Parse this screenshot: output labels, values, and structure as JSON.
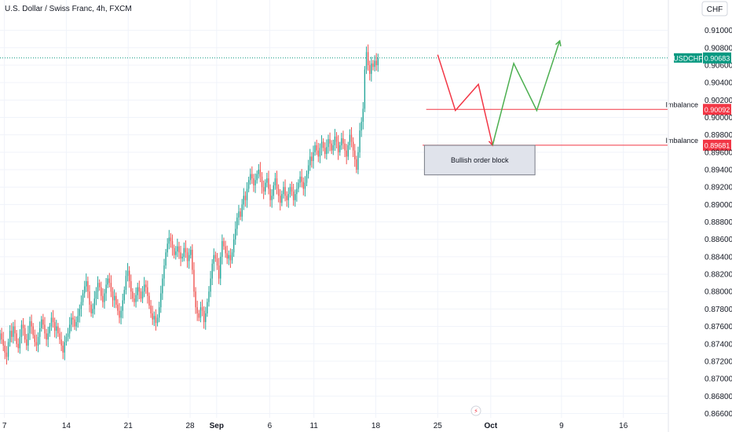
{
  "header": {
    "title": "U.S. Dollar / Swiss Franc, 4h, FXCM",
    "currency_button": "CHF"
  },
  "chart_data": {
    "type": "candlestick",
    "symbol_label": "USDCHF",
    "last_price": "0.90683",
    "ylim": [
      0.8655,
      0.9115
    ],
    "y_ticks": [
      "0.91000",
      "0.90800",
      "0.90600",
      "0.90400",
      "0.90200",
      "0.90000",
      "0.89800",
      "0.89600",
      "0.89400",
      "0.89200",
      "0.89000",
      "0.88800",
      "0.88600",
      "0.88400",
      "0.88200",
      "0.88000",
      "0.87800",
      "0.87600",
      "0.87400",
      "0.87200",
      "0.87000",
      "0.86800",
      "0.86600"
    ],
    "x_ticks": [
      {
        "label": "7",
        "x": 7
      },
      {
        "label": "14",
        "x": 14
      },
      {
        "label": "21",
        "x": 21
      },
      {
        "label": "28",
        "x": 28
      },
      {
        "label": "Sep",
        "x": 31
      },
      {
        "label": "6",
        "x": 37
      },
      {
        "label": "11",
        "x": 42
      },
      {
        "label": "18",
        "x": 49
      },
      {
        "label": "25",
        "x": 56
      },
      {
        "label": "Oct",
        "x": 62
      },
      {
        "label": "9",
        "x": 70
      },
      {
        "label": "16",
        "x": 77
      }
    ],
    "x_range": [
      6.5,
      82
    ],
    "candles": {
      "start": 6.5,
      "step": 0.1875,
      "closes": [
        0.8752,
        0.8745,
        0.8738,
        0.873,
        0.8725,
        0.8742,
        0.8755,
        0.8748,
        0.876,
        0.8752,
        0.874,
        0.8735,
        0.8748,
        0.8762,
        0.8758,
        0.8745,
        0.8738,
        0.8752,
        0.8766,
        0.876,
        0.875,
        0.8742,
        0.8738,
        0.8748,
        0.8758,
        0.8768,
        0.8762,
        0.8752,
        0.8745,
        0.8752,
        0.876,
        0.877,
        0.8765,
        0.8755,
        0.876,
        0.8752,
        0.8745,
        0.8738,
        0.873,
        0.8742,
        0.8748,
        0.8752,
        0.8762,
        0.877,
        0.8768,
        0.876,
        0.8765,
        0.8772,
        0.878,
        0.8788,
        0.8798,
        0.8806,
        0.8812,
        0.88,
        0.8785,
        0.8775,
        0.878,
        0.8792,
        0.88,
        0.881,
        0.8805,
        0.8795,
        0.8788,
        0.8798,
        0.8808,
        0.8815,
        0.881,
        0.88,
        0.879,
        0.8795,
        0.8785,
        0.8778,
        0.877,
        0.8778,
        0.879,
        0.8802,
        0.8818,
        0.8824,
        0.8812,
        0.88,
        0.8792,
        0.8788,
        0.8796,
        0.8805,
        0.88,
        0.8792,
        0.88,
        0.8808,
        0.8805,
        0.8795,
        0.8784,
        0.8775,
        0.8768,
        0.8772,
        0.8764,
        0.877,
        0.8782,
        0.8798,
        0.8815,
        0.883,
        0.8845,
        0.8855,
        0.8862,
        0.8858,
        0.885,
        0.8842,
        0.8846,
        0.8852,
        0.8845,
        0.8838,
        0.884,
        0.885,
        0.8845,
        0.8835,
        0.8842,
        0.8848,
        0.8825,
        0.88,
        0.8782,
        0.8775,
        0.877,
        0.8782,
        0.8778,
        0.8765,
        0.8775,
        0.8788,
        0.88,
        0.8815,
        0.8832,
        0.8842,
        0.8838,
        0.883,
        0.8815,
        0.884,
        0.8858,
        0.8852,
        0.8844,
        0.8838,
        0.8842,
        0.8836,
        0.8845,
        0.886,
        0.8872,
        0.8885,
        0.8892,
        0.8886,
        0.89,
        0.891,
        0.8905,
        0.8918,
        0.8928,
        0.8935,
        0.893,
        0.8922,
        0.8928,
        0.8935,
        0.894,
        0.8932,
        0.892,
        0.8915,
        0.8925,
        0.893,
        0.8918,
        0.8905,
        0.891,
        0.8922,
        0.893,
        0.8918,
        0.891,
        0.8902,
        0.8912,
        0.892,
        0.891,
        0.8905,
        0.8912,
        0.892,
        0.8915,
        0.8905,
        0.8912,
        0.8918,
        0.8925,
        0.8932,
        0.8926,
        0.8918,
        0.8925,
        0.8935,
        0.8945,
        0.8955,
        0.895,
        0.896,
        0.8968,
        0.8962,
        0.8955,
        0.8965,
        0.8972,
        0.8965,
        0.8958,
        0.8966,
        0.8975,
        0.897,
        0.8962,
        0.8968,
        0.8978,
        0.8972,
        0.896,
        0.8968,
        0.8976,
        0.897,
        0.8962,
        0.8955,
        0.8968,
        0.898,
        0.8972,
        0.8962,
        0.8952,
        0.894,
        0.896,
        0.8985,
        0.8995,
        0.901,
        0.9055,
        0.9075,
        0.906,
        0.905,
        0.9062,
        0.9058,
        0.9065,
        0.906,
        0.9068
      ]
    },
    "projection": {
      "red": [
        [
          56.0,
          0.9072
        ],
        [
          58.0,
          0.9008
        ],
        [
          60.6,
          0.9038
        ],
        [
          62.2,
          0.8968
        ]
      ],
      "green": [
        [
          62.2,
          0.8968
        ],
        [
          64.6,
          0.9062
        ],
        [
          67.2,
          0.9008
        ],
        [
          69.8,
          0.9088
        ]
      ]
    },
    "zones": [
      {
        "label": "Imbalance",
        "price": "0.90092",
        "value": 0.90092
      },
      {
        "label": "Imbalance",
        "price": "0.89681",
        "value": 0.89681
      }
    ],
    "order_block": {
      "label": "Bullish order block",
      "x1": 54.5,
      "x2": 67.0,
      "y_top": 0.8968,
      "y_bottom": 0.8934
    },
    "colors": {
      "up": "#26a69a",
      "down": "#ef5350",
      "grid": "#f0f3fa",
      "zone_line": "#f23645",
      "last_price": "#089981",
      "projection_red": "#f23645",
      "projection_green": "#4caf50",
      "box_fill": "#e0e3eb",
      "box_stroke": "#787b86"
    }
  }
}
